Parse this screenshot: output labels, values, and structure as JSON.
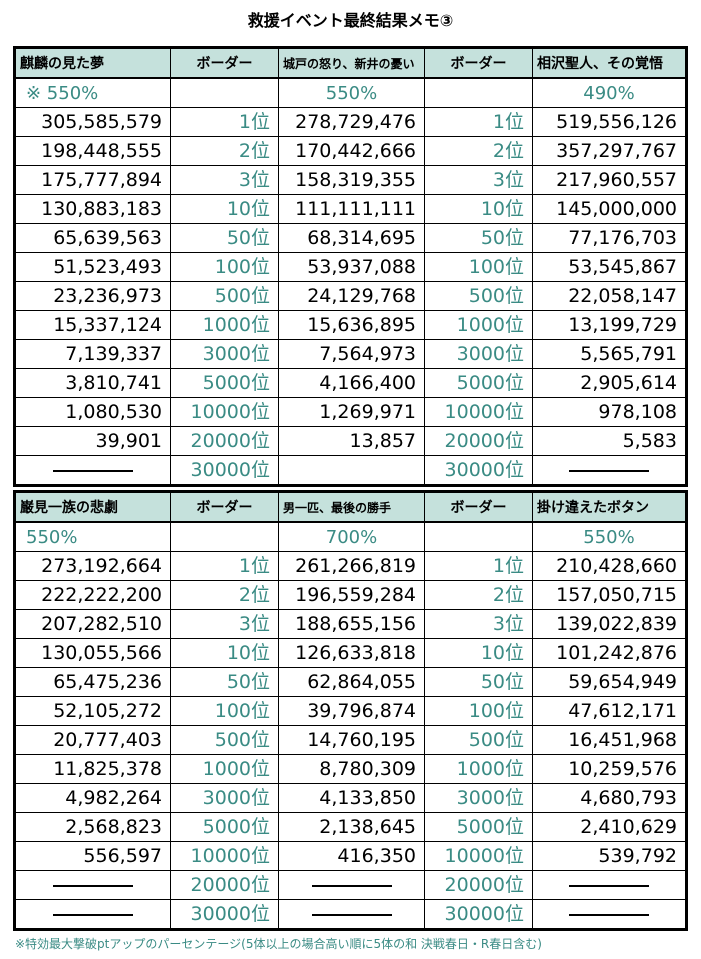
{
  "title": "救援イベント最終結果メモ③",
  "footnote": "※特効最大撃破ptアップのパーセンテージ(5体以上の場合高い順に5体の和 決戦春日・R春日含む)",
  "border_label": "ボーダー",
  "ranks": [
    "1位",
    "2位",
    "3位",
    "10位",
    "50位",
    "100位",
    "500位",
    "1000位",
    "3000位",
    "5000位",
    "10000位",
    "20000位",
    "30000位"
  ],
  "table1": {
    "events": [
      {
        "name": "麒麟の見た夢",
        "percent": "※ 550%",
        "values": [
          "305,585,579",
          "198,448,555",
          "175,777,894",
          "130,883,183",
          "65,639,563",
          "51,523,493",
          "23,236,973",
          "15,337,124",
          "7,139,337",
          "3,810,741",
          "1,080,530",
          "39,901",
          "—"
        ]
      },
      {
        "name": "城戸の怒り、新井の憂い",
        "percent": "550%",
        "values": [
          "278,729,476",
          "170,442,666",
          "158,319,355",
          "111,111,111",
          "68,314,695",
          "53,937,088",
          "24,129,768",
          "15,636,895",
          "7,564,973",
          "4,166,400",
          "1,269,971",
          "13,857",
          ""
        ]
      },
      {
        "name": "相沢聖人、その覚悟",
        "percent": "490%",
        "values": [
          "519,556,126",
          "357,297,767",
          "217,960,557",
          "145,000,000",
          "77,176,703",
          "53,545,867",
          "22,058,147",
          "13,199,729",
          "5,565,791",
          "2,905,614",
          "978,108",
          "5,583",
          "—"
        ]
      }
    ]
  },
  "table2": {
    "events": [
      {
        "name": "巌見一族の悲劇",
        "percent": "550%",
        "values": [
          "273,192,664",
          "222,222,200",
          "207,282,510",
          "130,055,566",
          "65,475,236",
          "52,105,272",
          "20,777,403",
          "11,825,378",
          "4,982,264",
          "2,568,823",
          "556,597",
          "—",
          "—"
        ]
      },
      {
        "name": "男一匹、最後の勝手",
        "percent": "700%",
        "values": [
          "261,266,819",
          "196,559,284",
          "188,655,156",
          "126,633,818",
          "62,864,055",
          "39,796,874",
          "14,760,195",
          "8,780,309",
          "4,133,850",
          "2,138,645",
          "416,350",
          "—",
          "—"
        ]
      },
      {
        "name": "掛け違えたボタン",
        "percent": "550%",
        "values": [
          "210,428,660",
          "157,050,715",
          "139,022,839",
          "101,242,876",
          "59,654,949",
          "47,612,171",
          "16,451,968",
          "10,259,576",
          "4,680,793",
          "2,410,629",
          "539,792",
          "—",
          "—"
        ]
      }
    ]
  },
  "colors": {
    "header_bg": "#c5e1dc",
    "accent_teal": "#3a8b84"
  }
}
